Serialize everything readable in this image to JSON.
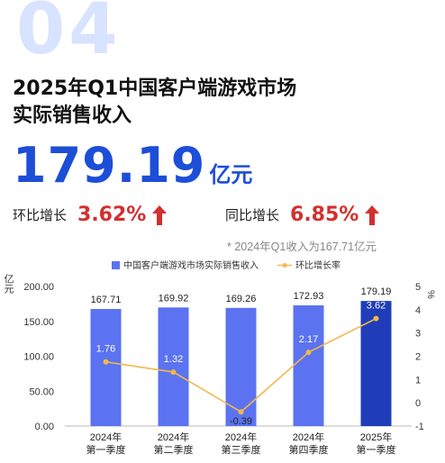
{
  "header": {
    "section_number": "04",
    "title_line1": "2025年Q1中国客户端游戏市场",
    "title_line2": "实际销售收入",
    "headline_value": "179.19",
    "headline_unit": "亿元",
    "qoq_label": "环比增长",
    "qoq_value": "3.62%",
    "yoy_label": "同比增长",
    "yoy_value": "6.85%",
    "note": "* 2024年Q1收入为167.71亿元",
    "accent_blue": "#1d4ed8",
    "accent_red": "#d32f2f"
  },
  "chart_data": {
    "type": "bar",
    "categories": [
      [
        "2024年",
        "第一季度"
      ],
      [
        "2024年",
        "第二季度"
      ],
      [
        "2024年",
        "第三季度"
      ],
      [
        "2024年",
        "第四季度"
      ],
      [
        "2025年",
        "第一季度"
      ]
    ],
    "series": [
      {
        "name": "中国客户端游戏市场实际销售收入",
        "type": "bar",
        "axis": "left",
        "values": [
          167.71,
          169.92,
          169.26,
          172.93,
          179.19
        ],
        "labels": [
          "167.71",
          "169.92",
          "169.26",
          "172.93",
          "179.19"
        ],
        "color": "#5b73f0",
        "highlight_color": "#1f3db8"
      },
      {
        "name": "环比增长率",
        "type": "line",
        "axis": "right",
        "values": [
          1.76,
          1.32,
          -0.39,
          2.17,
          3.62
        ],
        "labels": [
          "1.76",
          "1.32",
          "-0.39",
          "2.17",
          "3.62"
        ],
        "color": "#f2b84b"
      }
    ],
    "y_left": {
      "label": "亿元",
      "ticks": [
        "200.00",
        "150.00",
        "100.00",
        "50.00",
        "0.00"
      ],
      "ylim": [
        0,
        200
      ]
    },
    "y_right": {
      "label": "%",
      "ticks": [
        "5",
        "4",
        "3",
        "2",
        "1",
        "0",
        "-1"
      ],
      "ylim": [
        -1,
        5
      ]
    },
    "legend_position": "top",
    "grid": false
  }
}
